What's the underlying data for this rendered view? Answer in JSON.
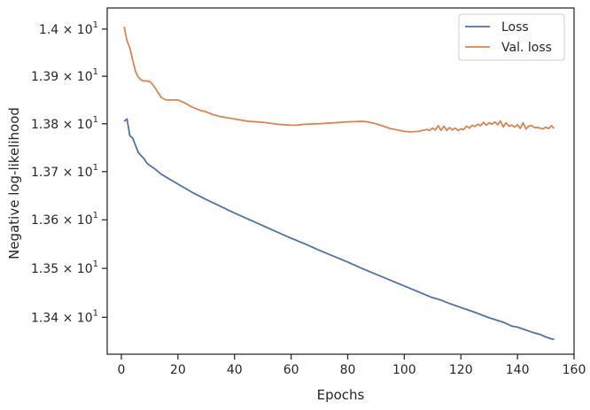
{
  "chart_data": {
    "type": "line",
    "xlabel": "Epochs",
    "ylabel": "Negative log-likelihood",
    "xlim": [
      -5,
      160
    ],
    "ylim": [
      13.325,
      14.045
    ],
    "yscale": "log",
    "x_ticks": [
      0,
      20,
      40,
      60,
      80,
      100,
      120,
      140,
      160
    ],
    "x_tick_labels": [
      "0",
      "20",
      "40",
      "60",
      "80",
      "100",
      "120",
      "140",
      "160"
    ],
    "y_ticks": [
      13.4,
      13.5,
      13.6,
      13.7,
      13.8,
      13.9,
      14.0
    ],
    "y_tick_labels": [
      {
        "mantissa": "1.34",
        "exp": "1"
      },
      {
        "mantissa": "1.35",
        "exp": "1"
      },
      {
        "mantissa": "1.36",
        "exp": "1"
      },
      {
        "mantissa": "1.37",
        "exp": "1"
      },
      {
        "mantissa": "1.38",
        "exp": "1"
      },
      {
        "mantissa": "1.39",
        "exp": "1"
      },
      {
        "mantissa": "1.4",
        "exp": "1"
      }
    ],
    "grid": false,
    "legend_position": "top-right",
    "series": [
      {
        "name": "Loss",
        "color": "#4c72b0",
        "x": [
          1,
          2,
          3,
          4,
          5,
          6,
          7,
          8,
          9,
          10,
          12,
          14,
          16,
          18,
          20,
          25,
          30,
          35,
          40,
          45,
          50,
          55,
          60,
          65,
          70,
          75,
          80,
          85,
          90,
          95,
          100,
          105,
          110,
          113,
          116,
          120,
          125,
          130,
          135,
          138,
          140,
          142,
          145,
          148,
          150,
          152,
          153
        ],
        "y": [
          13.805,
          13.81,
          13.775,
          13.77,
          13.755,
          13.74,
          13.733,
          13.727,
          13.718,
          13.713,
          13.705,
          13.695,
          13.688,
          13.681,
          13.674,
          13.657,
          13.642,
          13.628,
          13.614,
          13.601,
          13.588,
          13.575,
          13.562,
          13.55,
          13.537,
          13.525,
          13.513,
          13.5,
          13.488,
          13.476,
          13.464,
          13.452,
          13.44,
          13.435,
          13.428,
          13.42,
          13.41,
          13.399,
          13.39,
          13.382,
          13.38,
          13.376,
          13.37,
          13.365,
          13.36,
          13.356,
          13.355
        ]
      },
      {
        "name": "Val. loss",
        "color": "#dd8452",
        "x": [
          1,
          2,
          3,
          4,
          5,
          6,
          7,
          8,
          9,
          10,
          11,
          12,
          13,
          14,
          15,
          16,
          18,
          20,
          22,
          25,
          28,
          30,
          32,
          35,
          38,
          40,
          45,
          50,
          55,
          60,
          62,
          65,
          70,
          75,
          80,
          85,
          87,
          90,
          95,
          100,
          102,
          105,
          108,
          109,
          110,
          111,
          112,
          113,
          114,
          115,
          116,
          117,
          118,
          119,
          120,
          121,
          122,
          123,
          124,
          125,
          126,
          127,
          128,
          129,
          130,
          131,
          132,
          133,
          134,
          135,
          136,
          137,
          138,
          139,
          140,
          141,
          142,
          143,
          144,
          145,
          146,
          147,
          148,
          149,
          150,
          151,
          152,
          153
        ],
        "y": [
          14.005,
          13.975,
          13.96,
          13.935,
          13.91,
          13.898,
          13.892,
          13.89,
          13.89,
          13.889,
          13.883,
          13.875,
          13.865,
          13.856,
          13.852,
          13.85,
          13.85,
          13.85,
          13.845,
          13.835,
          13.828,
          13.825,
          13.82,
          13.815,
          13.812,
          13.81,
          13.805,
          13.803,
          13.799,
          13.797,
          13.797,
          13.799,
          13.8,
          13.802,
          13.804,
          13.805,
          13.804,
          13.8,
          13.79,
          13.784,
          13.783,
          13.784,
          13.788,
          13.786,
          13.791,
          13.787,
          13.796,
          13.786,
          13.795,
          13.786,
          13.792,
          13.787,
          13.791,
          13.786,
          13.789,
          13.788,
          13.795,
          13.791,
          13.797,
          13.794,
          13.799,
          13.796,
          13.803,
          13.797,
          13.802,
          13.799,
          13.804,
          13.798,
          13.806,
          13.793,
          13.802,
          13.795,
          13.797,
          13.793,
          13.798,
          13.79,
          13.802,
          13.789,
          13.795,
          13.796,
          13.792,
          13.792,
          13.791,
          13.789,
          13.793,
          13.79,
          13.796,
          13.79
        ]
      }
    ]
  }
}
